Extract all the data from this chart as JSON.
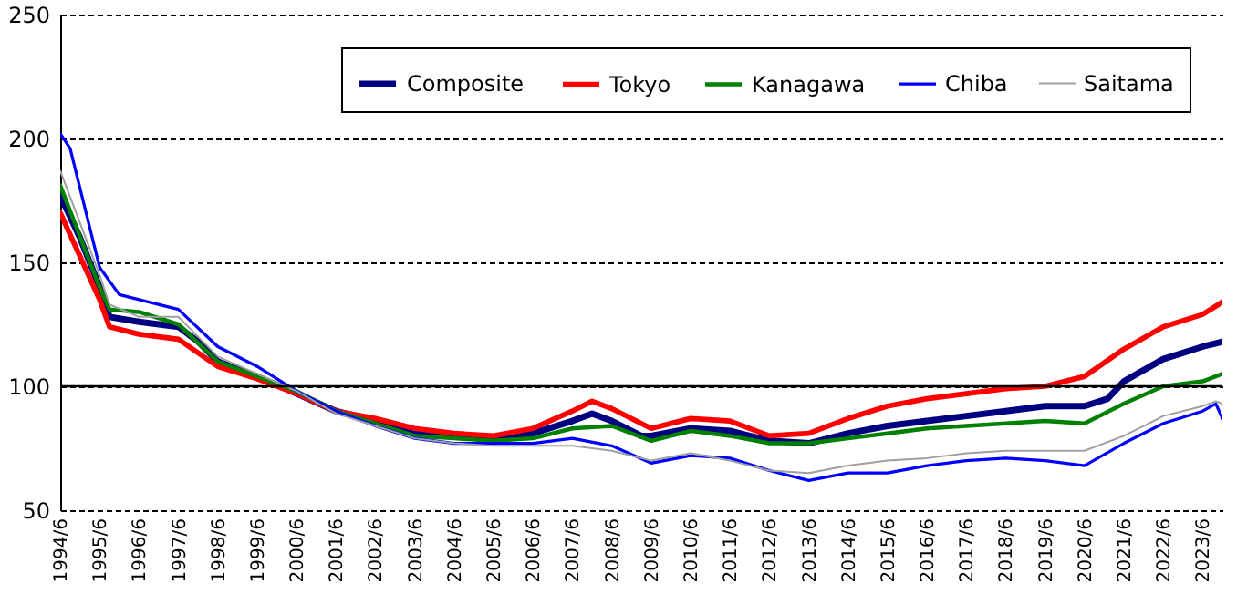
{
  "chart_data": {
    "type": "line",
    "ylim": [
      50,
      250
    ],
    "yticks": [
      50,
      100,
      150,
      200,
      250
    ],
    "xlim": [
      "1994-06",
      "2023-12"
    ],
    "xticks": [
      {
        "value": "1994-06",
        "label": "1994/6"
      },
      {
        "value": "1995-06",
        "label": "1995/6"
      },
      {
        "value": "1996-06",
        "label": "1996/6"
      },
      {
        "value": "1997-06",
        "label": "1997/6"
      },
      {
        "value": "1998-06",
        "label": "1998/6"
      },
      {
        "value": "1999-06",
        "label": "1999/6"
      },
      {
        "value": "2000-06",
        "label": "2000/6"
      },
      {
        "value": "2001-06",
        "label": "2001/6"
      },
      {
        "value": "2002-06",
        "label": "2002/6"
      },
      {
        "value": "2003-06",
        "label": "2003/6"
      },
      {
        "value": "2004-06",
        "label": "2004/6"
      },
      {
        "value": "2005-06",
        "label": "2005/6"
      },
      {
        "value": "2006-06",
        "label": "2006/6"
      },
      {
        "value": "2007-06",
        "label": "2007/6"
      },
      {
        "value": "2008-06",
        "label": "2008/6"
      },
      {
        "value": "2009-06",
        "label": "2009/6"
      },
      {
        "value": "2010-06",
        "label": "2010/6"
      },
      {
        "value": "2011-06",
        "label": "2011/6"
      },
      {
        "value": "2012-06",
        "label": "2012/6"
      },
      {
        "value": "2013-06",
        "label": "2013/6"
      },
      {
        "value": "2014-06",
        "label": "2014/6"
      },
      {
        "value": "2015-06",
        "label": "2015/6"
      },
      {
        "value": "2016-06",
        "label": "2016/6"
      },
      {
        "value": "2017-06",
        "label": "2017/6"
      },
      {
        "value": "2018-06",
        "label": "2018/6"
      },
      {
        "value": "2019-06",
        "label": "2019/6"
      },
      {
        "value": "2020-06",
        "label": "2020/6"
      },
      {
        "value": "2021-06",
        "label": "2021/6"
      },
      {
        "value": "2022-06",
        "label": "2022/6"
      },
      {
        "value": "2023-06",
        "label": "2023/6"
      }
    ],
    "grid": "y",
    "legend": "top right",
    "marker": "none",
    "line_style": "solid",
    "ref_lines": [
      {
        "axis": "y",
        "value": 100,
        "color": "#000000",
        "line_style": "solid"
      }
    ],
    "series": [
      {
        "name": "Composite",
        "color": "#000080",
        "x": [
          "1994-06",
          "1994-12",
          "1995-06",
          "1995-09",
          "1996-06",
          "1997-06",
          "1997-12",
          "1998-06",
          "1999-06",
          "2000-06",
          "2001-06",
          "2002-06",
          "2003-06",
          "2004-06",
          "2005-06",
          "2006-06",
          "2007-06",
          "2007-12",
          "2008-06",
          "2009-03",
          "2009-06",
          "2010-06",
          "2011-06",
          "2012-06",
          "2013-06",
          "2014-06",
          "2015-06",
          "2016-06",
          "2017-06",
          "2018-06",
          "2019-06",
          "2020-06",
          "2021-01",
          "2021-06",
          "2022-06",
          "2023-06",
          "2023-12"
        ],
        "values": [
          177,
          160,
          140,
          128,
          126,
          124,
          118,
          110,
          104,
          97,
          90,
          86,
          82,
          80,
          79,
          81,
          86,
          89,
          86,
          80,
          80,
          83,
          82,
          78,
          77,
          81,
          84,
          86,
          88,
          90,
          92,
          92,
          95,
          102,
          111,
          116,
          118
        ]
      },
      {
        "name": "Tokyo",
        "color": "#ff0000",
        "x": [
          "1994-06",
          "1995-06",
          "1995-09",
          "1996-06",
          "1997-06",
          "1998-06",
          "1999-06",
          "2000-06",
          "2001-06",
          "2002-06",
          "2003-06",
          "2004-06",
          "2005-06",
          "2006-06",
          "2007-06",
          "2007-12",
          "2008-06",
          "2009-06",
          "2010-06",
          "2011-06",
          "2012-06",
          "2013-06",
          "2014-06",
          "2015-06",
          "2016-06",
          "2017-06",
          "2018-06",
          "2019-06",
          "2020-06",
          "2021-06",
          "2022-06",
          "2023-06",
          "2023-12"
        ],
        "values": [
          170,
          135,
          124,
          121,
          119,
          108,
          103,
          97,
          90,
          87,
          83,
          81,
          80,
          83,
          90,
          94,
          91,
          83,
          87,
          86,
          80,
          81,
          87,
          92,
          95,
          97,
          99,
          100,
          104,
          115,
          124,
          129,
          134
        ]
      },
      {
        "name": "Kanagawa",
        "color": "#008000",
        "x": [
          "1994-06",
          "1995-06",
          "1995-09",
          "1996-06",
          "1997-06",
          "1998-06",
          "1999-06",
          "2000-06",
          "2001-06",
          "2002-06",
          "2003-06",
          "2004-06",
          "2005-06",
          "2006-06",
          "2007-06",
          "2008-06",
          "2009-06",
          "2010-06",
          "2011-06",
          "2012-06",
          "2013-06",
          "2014-06",
          "2015-06",
          "2016-06",
          "2017-06",
          "2018-06",
          "2019-06",
          "2020-06",
          "2021-06",
          "2022-06",
          "2023-06",
          "2023-12"
        ],
        "values": [
          181,
          140,
          131,
          130,
          125,
          110,
          104,
          98,
          90,
          85,
          80,
          79,
          78,
          79,
          83,
          84,
          78,
          82,
          80,
          77,
          77,
          79,
          81,
          83,
          84,
          85,
          86,
          85,
          93,
          100,
          102,
          105
        ]
      },
      {
        "name": "Chiba",
        "color": "#0000ff",
        "x": [
          "1994-06",
          "1994-09",
          "1995-06",
          "1995-12",
          "1996-06",
          "1997-06",
          "1998-06",
          "1999-06",
          "2000-06",
          "2001-06",
          "2002-06",
          "2003-06",
          "2004-06",
          "2005-06",
          "2006-06",
          "2007-06",
          "2008-06",
          "2009-06",
          "2010-06",
          "2011-06",
          "2012-06",
          "2013-06",
          "2014-06",
          "2015-06",
          "2016-06",
          "2017-06",
          "2018-06",
          "2019-06",
          "2020-06",
          "2021-06",
          "2022-06",
          "2023-06",
          "2023-10",
          "2023-12"
        ],
        "values": [
          202,
          196,
          148,
          137,
          135,
          131,
          116,
          108,
          98,
          90,
          84,
          79,
          77,
          77,
          77,
          79,
          76,
          69,
          72,
          71,
          66,
          62,
          65,
          65,
          68,
          70,
          71,
          70,
          68,
          77,
          85,
          90,
          93,
          87
        ]
      },
      {
        "name": "Saitama",
        "color": "#a0a0a0",
        "x": [
          "1994-06",
          "1995-06",
          "1995-09",
          "1996-06",
          "1997-06",
          "1998-06",
          "1999-06",
          "2000-06",
          "2001-06",
          "2002-06",
          "2003-06",
          "2004-06",
          "2005-06",
          "2006-06",
          "2007-06",
          "2008-06",
          "2009-06",
          "2010-06",
          "2011-06",
          "2012-06",
          "2013-06",
          "2014-06",
          "2015-06",
          "2016-06",
          "2017-06",
          "2018-06",
          "2019-06",
          "2020-06",
          "2021-06",
          "2022-06",
          "2023-06",
          "2023-10",
          "2023-12"
        ],
        "values": [
          187,
          145,
          133,
          128,
          128,
          112,
          105,
          98,
          89,
          84,
          79,
          77,
          76,
          76,
          76,
          74,
          70,
          73,
          70,
          66,
          65,
          68,
          70,
          71,
          73,
          74,
          74,
          74,
          80,
          88,
          92,
          94,
          93
        ]
      }
    ]
  }
}
